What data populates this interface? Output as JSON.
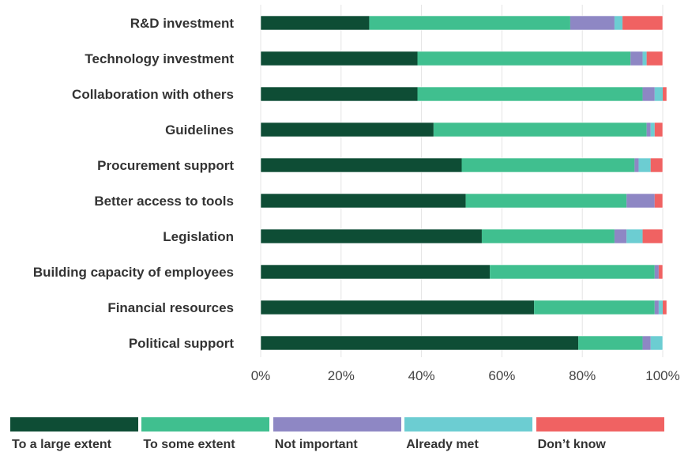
{
  "chart_data": {
    "type": "bar",
    "orientation": "horizontal",
    "stacked": true,
    "categories": [
      "R&D investment",
      "Technology investment",
      "Collaboration with others",
      "Guidelines",
      "Procurement support",
      "Better access to tools",
      "Legislation",
      "Building capacity of employees",
      "Financial resources",
      "Political support"
    ],
    "series": [
      {
        "name": "To a large extent",
        "color": "#0e4d35",
        "values": [
          27,
          39,
          39,
          43,
          50,
          51,
          55,
          57,
          68,
          79
        ]
      },
      {
        "name": "To some extent",
        "color": "#40bf8f",
        "values": [
          50,
          53,
          56,
          53,
          43,
          40,
          33,
          41,
          30,
          16
        ]
      },
      {
        "name": "Not important",
        "color": "#8e87c4",
        "values": [
          11,
          3,
          3,
          1,
          1,
          7,
          3,
          1,
          1,
          2
        ]
      },
      {
        "name": "Already met",
        "color": "#6ccdd2",
        "values": [
          2,
          1,
          2,
          1,
          3,
          0,
          4,
          0,
          1,
          3
        ]
      },
      {
        "name": "Don’t know",
        "color": "#f06262",
        "values": [
          10,
          4,
          1,
          2,
          3,
          2,
          5,
          1,
          1,
          0
        ]
      }
    ],
    "x_ticks": [
      "0%",
      "20%",
      "40%",
      "60%",
      "80%",
      "100%"
    ],
    "xlim": [
      0,
      100
    ],
    "grid": true,
    "legend_position": "bottom"
  }
}
